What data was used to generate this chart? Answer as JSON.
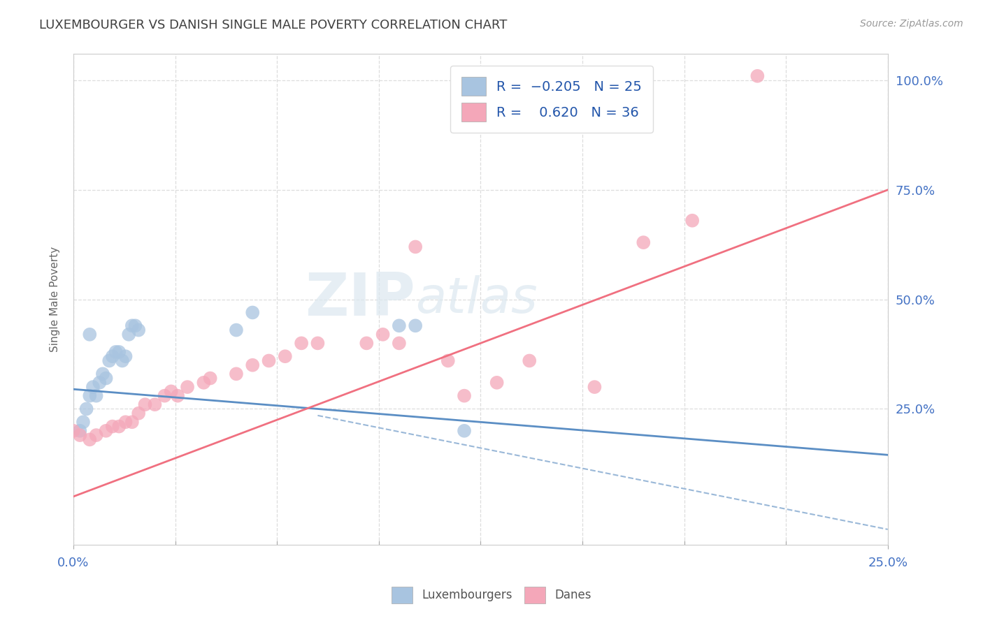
{
  "title": "LUXEMBOURGER VS DANISH SINGLE MALE POVERTY CORRELATION CHART",
  "source": "Source: ZipAtlas.com",
  "ylabel": "Single Male Poverty",
  "xlim": [
    0.0,
    0.25
  ],
  "ylim": [
    -0.06,
    1.06
  ],
  "xticks": [
    0.0,
    0.03125,
    0.0625,
    0.09375,
    0.125,
    0.15625,
    0.1875,
    0.21875,
    0.25
  ],
  "yticks": [
    0.25,
    0.5,
    0.75,
    1.0
  ],
  "ytick_labels": [
    "25.0%",
    "50.0%",
    "75.0%",
    "100.0%"
  ],
  "xtick_left_label": "0.0%",
  "xtick_right_label": "25.0%",
  "color_lux": "#a8c4e0",
  "color_dane": "#f4a7b9",
  "color_lux_line": "#5b8ec4",
  "color_dane_line": "#f07080",
  "color_dashed": "#9ab8d8",
  "watermark_zip": "ZIP",
  "watermark_atlas": "atlas",
  "lux_points_x": [
    0.002,
    0.003,
    0.004,
    0.005,
    0.006,
    0.007,
    0.008,
    0.009,
    0.01,
    0.011,
    0.012,
    0.013,
    0.014,
    0.015,
    0.016,
    0.017,
    0.018,
    0.019,
    0.02,
    0.005,
    0.05,
    0.055,
    0.1,
    0.105,
    0.12
  ],
  "lux_points_y": [
    0.2,
    0.22,
    0.25,
    0.28,
    0.3,
    0.28,
    0.31,
    0.33,
    0.32,
    0.36,
    0.37,
    0.38,
    0.38,
    0.36,
    0.37,
    0.42,
    0.44,
    0.44,
    0.43,
    0.42,
    0.43,
    0.47,
    0.44,
    0.44,
    0.2
  ],
  "dane_points_x": [
    0.0,
    0.002,
    0.005,
    0.007,
    0.01,
    0.012,
    0.014,
    0.016,
    0.018,
    0.02,
    0.022,
    0.025,
    0.028,
    0.03,
    0.032,
    0.035,
    0.04,
    0.042,
    0.05,
    0.055,
    0.06,
    0.065,
    0.07,
    0.075,
    0.09,
    0.095,
    0.1,
    0.105,
    0.115,
    0.12,
    0.13,
    0.14,
    0.16,
    0.175,
    0.19,
    0.21
  ],
  "dane_points_y": [
    0.2,
    0.19,
    0.18,
    0.19,
    0.2,
    0.21,
    0.21,
    0.22,
    0.22,
    0.24,
    0.26,
    0.26,
    0.28,
    0.29,
    0.28,
    0.3,
    0.31,
    0.32,
    0.33,
    0.35,
    0.36,
    0.37,
    0.4,
    0.4,
    0.4,
    0.42,
    0.4,
    0.62,
    0.36,
    0.28,
    0.31,
    0.36,
    0.3,
    0.63,
    0.68,
    1.01
  ],
  "lux_trend_x": [
    0.0,
    0.25
  ],
  "lux_trend_y": [
    0.295,
    0.145
  ],
  "dane_trend_x": [
    0.0,
    0.25
  ],
  "dane_trend_y": [
    0.05,
    0.75
  ],
  "dashed_trend_x": [
    0.075,
    0.25
  ],
  "dashed_trend_y": [
    0.235,
    -0.025
  ],
  "background_color": "#ffffff",
  "grid_color": "#dddddd"
}
